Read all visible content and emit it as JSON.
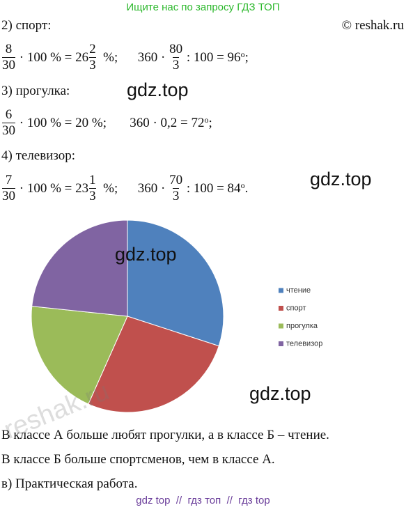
{
  "header": {
    "search_hint": "Ищите нас по запросу ГДЗ ТОП",
    "copyright": "© reshak.ru"
  },
  "sections": [
    "2) спорт:",
    "3) прогулка:",
    "4) телевизор:"
  ],
  "formulas": [
    [
      {
        "num": "8",
        "den": "30"
      },
      {
        "text": " · 100 % = 26"
      },
      {
        "num": "2",
        "den": "3"
      },
      {
        "text": "  %;      360 · "
      },
      {
        "num": "80",
        "den": "3"
      },
      {
        "text": " : 100 = 96"
      },
      {
        "sup": "о"
      },
      {
        "text": ";"
      }
    ],
    [
      {
        "num": "6",
        "den": "30"
      },
      {
        "text": " · 100 % = 20 %;       360 · 0,2 = 72"
      },
      {
        "sup": "о"
      },
      {
        "text": ";"
      }
    ],
    [
      {
        "num": "7",
        "den": "30"
      },
      {
        "text": " · 100 % = 23"
      },
      {
        "num": "1",
        "den": "3"
      },
      {
        "text": "  %;      360 · "
      },
      {
        "num": "70",
        "den": "3"
      },
      {
        "text": " : 100 = 84"
      },
      {
        "sup": "о"
      },
      {
        "text": "."
      }
    ]
  ],
  "chart_data": {
    "type": "pie",
    "categories": [
      "чтение",
      "спорт",
      "прогулка",
      "телевизор"
    ],
    "values": [
      108,
      96,
      72,
      84
    ],
    "colors": [
      "#4f81bd",
      "#c0504d",
      "#9bbb59",
      "#8064a2"
    ],
    "legend": "right"
  },
  "conclusions": [
    "В классе А больше любят прогулки, а в классе Б – чтение.",
    "В классе Б больше спортсменов, чем в классе А.",
    "в) Практическая работа."
  ],
  "watermarks": [
    "gdz.top",
    "gdz.top",
    "gdz.top",
    "gdz.top",
    "reshak.ru"
  ],
  "footer": "gdz top  //  гдз топ  //  гдз top"
}
